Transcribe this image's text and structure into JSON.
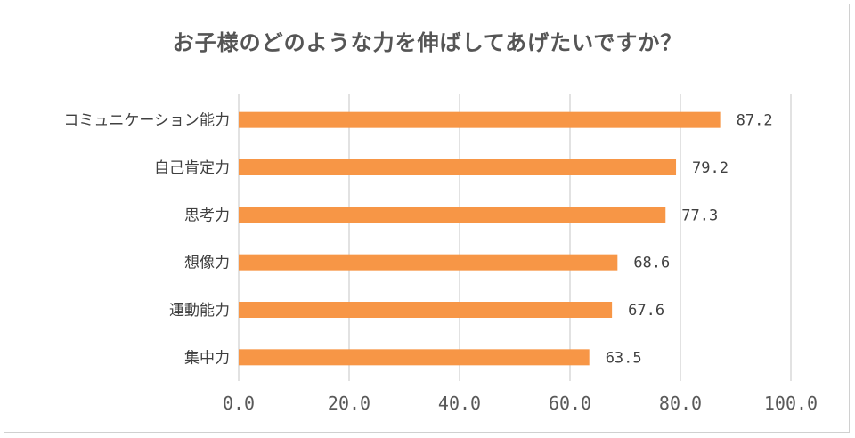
{
  "chart_data": {
    "type": "bar",
    "orientation": "horizontal",
    "title": "お子様のどのような力を伸ばしてあげたいですか？",
    "categories": [
      "コミュニケーション能力",
      "自己肯定力",
      "思考力",
      "想像力",
      "運動能力",
      "集中力"
    ],
    "values": [
      87.2,
      79.2,
      77.3,
      68.6,
      67.6,
      63.5
    ],
    "value_labels": [
      "87.2",
      "79.2",
      "77.3",
      "68.6",
      "67.6",
      "63.5"
    ],
    "xlim": [
      0,
      100
    ],
    "ticks": [
      0,
      20,
      40,
      60,
      80,
      100
    ],
    "tick_labels": [
      "0.0",
      "20.0",
      "40.0",
      "60.0",
      "80.0",
      "100.0"
    ],
    "grid": true,
    "legend": "none",
    "bar_color": "#f79646"
  }
}
